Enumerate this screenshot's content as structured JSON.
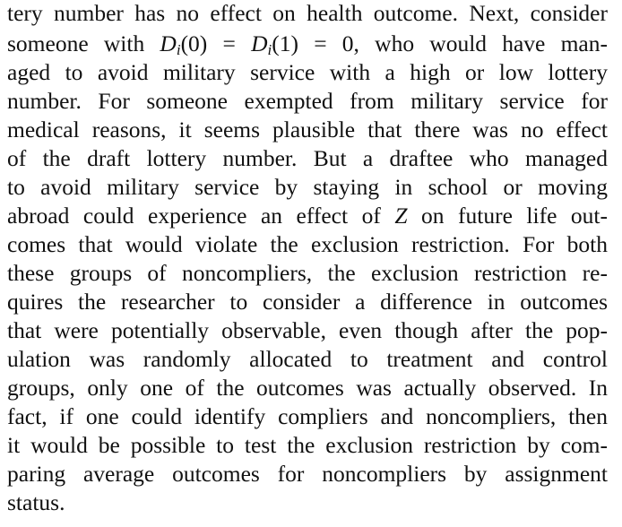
{
  "paragraph": {
    "lines": [
      {
        "type": "text",
        "text": "tery number has no effect on health outcome. Next, consider"
      },
      {
        "type": "math",
        "before": "someone with ",
        "math": {
          "d": "D",
          "sub": "i",
          "a0": "(0) = ",
          "d2": "D",
          "sub2": "i",
          "a1": "(1) = 0,"
        },
        "after": " who would have man-"
      },
      {
        "type": "text",
        "text": "aged to avoid military service with a high or low lottery"
      },
      {
        "type": "text",
        "text": "number. For someone exempted from military service for"
      },
      {
        "type": "text",
        "text": "medical reasons, it seems plausible that there was no effect"
      },
      {
        "type": "text",
        "text": "of the draft lottery number. But a draftee who managed"
      },
      {
        "type": "text",
        "text": "to avoid military service by staying in school or moving"
      },
      {
        "type": "zline",
        "before": "abroad could experience an effect of ",
        "var": "Z",
        "after": " on future life out-"
      },
      {
        "type": "text",
        "text": "comes that would violate the exclusion restriction. For both"
      },
      {
        "type": "text",
        "text": "these groups of noncompliers, the exclusion restriction re-"
      },
      {
        "type": "text",
        "text": "quires the researcher to consider a difference in outcomes"
      },
      {
        "type": "text",
        "text": "that were potentially observable, even though after the pop-"
      },
      {
        "type": "text",
        "text": "ulation was randomly allocated to treatment and control"
      },
      {
        "type": "text",
        "text": "groups, only one of the outcomes was actually observed. In"
      },
      {
        "type": "text",
        "text": "fact, if one could identify compliers and noncompliers, then"
      },
      {
        "type": "text",
        "text": "it would be possible to test the exclusion restriction by com-"
      },
      {
        "type": "text",
        "text": "paring average outcomes for noncompliers by assignment"
      },
      {
        "type": "text",
        "text": "status."
      }
    ]
  }
}
